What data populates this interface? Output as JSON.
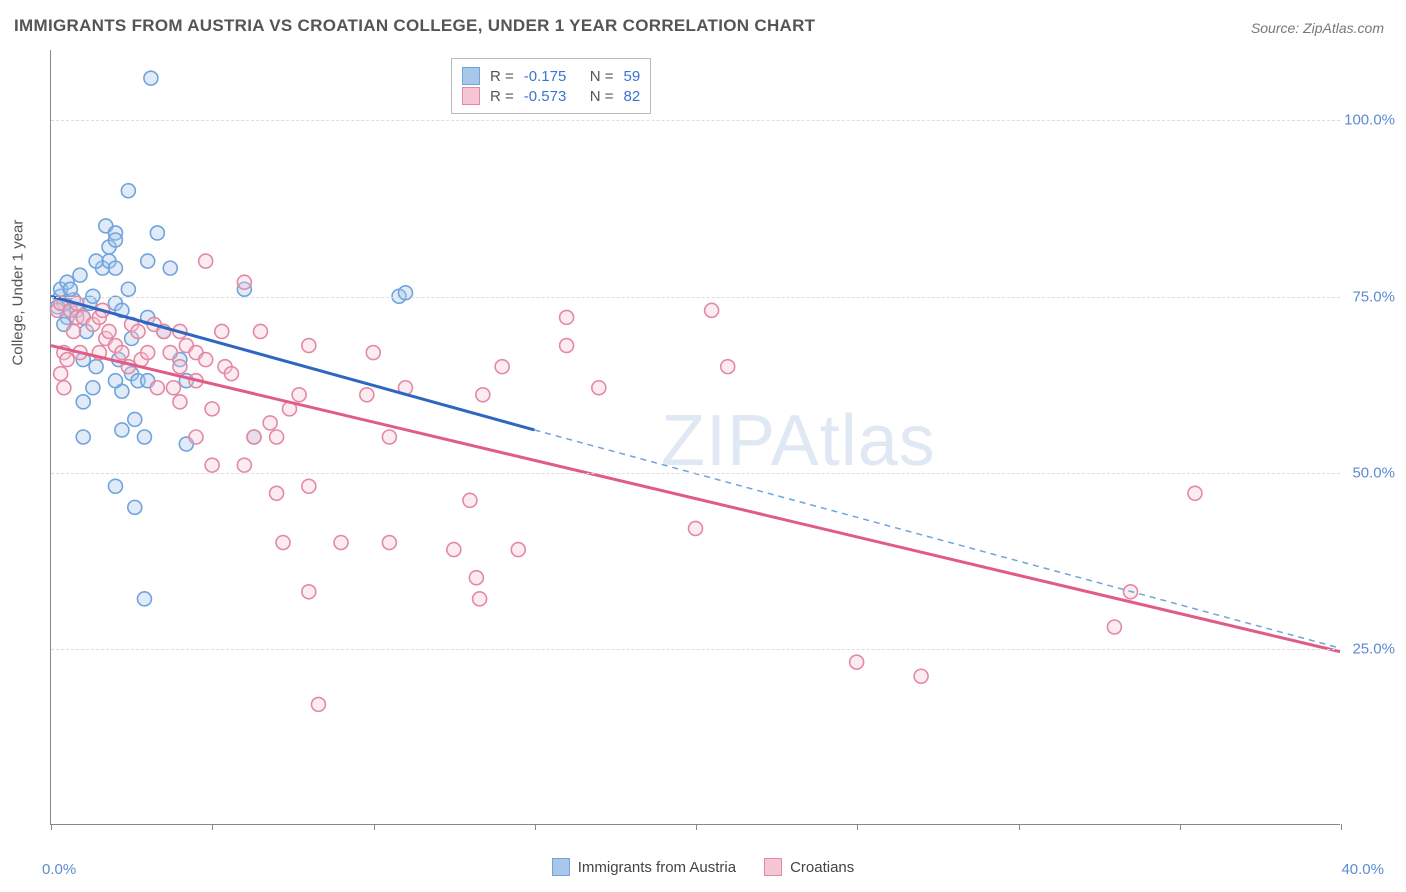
{
  "title": "IMMIGRANTS FROM AUSTRIA VS CROATIAN COLLEGE, UNDER 1 YEAR CORRELATION CHART",
  "source_label": "Source: ZipAtlas.com",
  "y_axis_label": "College, Under 1 year",
  "watermark_text": "ZIPAtlas",
  "chart": {
    "type": "scatter",
    "background_color": "#ffffff",
    "grid_color": "#dddddd",
    "axis_color": "#888888",
    "xlim": [
      0,
      40
    ],
    "ylim": [
      0,
      110
    ],
    "x_ticks": [
      0,
      5,
      10,
      15,
      20,
      25,
      30,
      35,
      40
    ],
    "y_ticks": [
      25,
      50,
      75,
      100
    ],
    "x_tick_labels": [
      "0.0%",
      "",
      "",
      "",
      "",
      "",
      "",
      "",
      "40.0%"
    ],
    "y_tick_labels": [
      "25.0%",
      "50.0%",
      "75.0%",
      "100.0%"
    ],
    "r_label": "R =",
    "n_label": "N =",
    "label_fontsize": 15,
    "tick_label_color": "#5b8bd4",
    "marker_radius": 7,
    "marker_fill_opacity": 0.35,
    "marker_stroke_width": 1.6,
    "series": [
      {
        "name": "Immigrants from Austria",
        "color_fill": "#a9c7ea",
        "color_stroke": "#6fa4dd",
        "line_color": "#2e66c2",
        "line_width": 3,
        "dash_color": "#6fa4dd",
        "R": "-0.175",
        "N": "59",
        "trend": {
          "x1": 0,
          "y1": 75,
          "x2": 15,
          "y2": 56,
          "x2_ext": 40,
          "y2_ext": 25
        },
        "points": [
          [
            0.3,
            75
          ],
          [
            0.4,
            74
          ],
          [
            0.5,
            72
          ],
          [
            0.3,
            76
          ],
          [
            0.6,
            73
          ],
          [
            0.7,
            74.5
          ],
          [
            0.4,
            71
          ],
          [
            0.5,
            77
          ],
          [
            0.8,
            73
          ],
          [
            0.9,
            78
          ],
          [
            0.2,
            73.5
          ],
          [
            0.6,
            76
          ],
          [
            1.0,
            66
          ],
          [
            1.1,
            70
          ],
          [
            1.0,
            72
          ],
          [
            1.2,
            74
          ],
          [
            1.3,
            75
          ],
          [
            1.0,
            60
          ],
          [
            1.3,
            62
          ],
          [
            1.0,
            55
          ],
          [
            1.4,
            65
          ],
          [
            1.7,
            85
          ],
          [
            1.8,
            82
          ],
          [
            1.6,
            79
          ],
          [
            1.8,
            80
          ],
          [
            1.4,
            80
          ],
          [
            2.0,
            84
          ],
          [
            2.0,
            83
          ],
          [
            2.0,
            79
          ],
          [
            2.0,
            74
          ],
          [
            2.2,
            73
          ],
          [
            2.2,
            61.5
          ],
          [
            2.2,
            56
          ],
          [
            2.0,
            63
          ],
          [
            2.1,
            66
          ],
          [
            2.0,
            48
          ],
          [
            2.4,
            76
          ],
          [
            2.5,
            69
          ],
          [
            2.5,
            64
          ],
          [
            2.7,
            63
          ],
          [
            3.0,
            72
          ],
          [
            3.1,
            106
          ],
          [
            3.0,
            80
          ],
          [
            3.0,
            63
          ],
          [
            2.9,
            55
          ],
          [
            2.6,
            57.5
          ],
          [
            2.6,
            45
          ],
          [
            2.9,
            32
          ],
          [
            2.4,
            90
          ],
          [
            3.3,
            84
          ],
          [
            3.7,
            79
          ],
          [
            3.5,
            70
          ],
          [
            4.0,
            66
          ],
          [
            4.2,
            63
          ],
          [
            4.2,
            54
          ],
          [
            6.0,
            76
          ],
          [
            6.3,
            55
          ],
          [
            10.8,
            75
          ],
          [
            11.0,
            75.5
          ]
        ]
      },
      {
        "name": "Croatians",
        "color_fill": "#f5c7d4",
        "color_stroke": "#e28aa4",
        "line_color": "#e05c87",
        "line_width": 3,
        "R": "-0.573",
        "N": "82",
        "trend": {
          "x1": 0,
          "y1": 68,
          "x2": 40,
          "y2": 24.5
        },
        "points": [
          [
            0.2,
            73
          ],
          [
            0.3,
            74
          ],
          [
            0.4,
            67
          ],
          [
            0.5,
            66
          ],
          [
            0.3,
            64
          ],
          [
            0.4,
            62
          ],
          [
            0.6,
            73
          ],
          [
            0.7,
            70
          ],
          [
            0.8,
            74
          ],
          [
            0.8,
            72
          ],
          [
            1.0,
            72
          ],
          [
            0.9,
            67
          ],
          [
            1.3,
            71
          ],
          [
            1.5,
            72
          ],
          [
            1.5,
            67
          ],
          [
            1.6,
            73
          ],
          [
            1.7,
            69
          ],
          [
            1.8,
            70
          ],
          [
            2.0,
            68
          ],
          [
            2.2,
            67
          ],
          [
            2.4,
            65
          ],
          [
            2.5,
            71
          ],
          [
            2.7,
            70
          ],
          [
            2.8,
            66
          ],
          [
            3.0,
            67
          ],
          [
            3.2,
            71
          ],
          [
            3.3,
            62
          ],
          [
            3.5,
            70
          ],
          [
            3.7,
            67
          ],
          [
            3.8,
            62
          ],
          [
            4.0,
            70
          ],
          [
            4.0,
            65
          ],
          [
            4.0,
            60
          ],
          [
            4.2,
            68
          ],
          [
            4.5,
            67
          ],
          [
            4.5,
            63
          ],
          [
            4.5,
            55
          ],
          [
            4.8,
            80
          ],
          [
            4.8,
            66
          ],
          [
            5.0,
            59
          ],
          [
            5.0,
            51
          ],
          [
            5.3,
            70
          ],
          [
            5.4,
            65
          ],
          [
            5.6,
            64
          ],
          [
            6.0,
            77
          ],
          [
            6.0,
            51
          ],
          [
            6.3,
            55
          ],
          [
            6.5,
            70
          ],
          [
            6.8,
            57
          ],
          [
            7.0,
            55
          ],
          [
            7.0,
            47
          ],
          [
            7.2,
            40
          ],
          [
            7.4,
            59
          ],
          [
            7.7,
            61
          ],
          [
            8.0,
            68
          ],
          [
            8.0,
            48
          ],
          [
            8.0,
            33
          ],
          [
            8.3,
            17
          ],
          [
            9.8,
            61
          ],
          [
            9.0,
            40
          ],
          [
            10.0,
            67
          ],
          [
            10.5,
            40
          ],
          [
            10.5,
            55
          ],
          [
            11.0,
            62
          ],
          [
            12.5,
            39
          ],
          [
            13.0,
            46
          ],
          [
            13.2,
            35
          ],
          [
            13.3,
            32
          ],
          [
            13.4,
            61
          ],
          [
            14.0,
            65
          ],
          [
            14.5,
            39
          ],
          [
            16.0,
            72
          ],
          [
            16.0,
            68
          ],
          [
            17.0,
            62
          ],
          [
            20.0,
            42
          ],
          [
            20.5,
            73
          ],
          [
            21.0,
            65
          ],
          [
            25.0,
            23
          ],
          [
            27.0,
            21
          ],
          [
            33.0,
            28
          ],
          [
            33.5,
            33
          ],
          [
            35.5,
            47
          ]
        ]
      }
    ]
  },
  "legend_bottom": [
    {
      "label": "Immigrants from Austria",
      "fill": "#a9c7ea",
      "stroke": "#6fa4dd"
    },
    {
      "label": "Croatians",
      "fill": "#f5c7d4",
      "stroke": "#e28aa4"
    }
  ]
}
